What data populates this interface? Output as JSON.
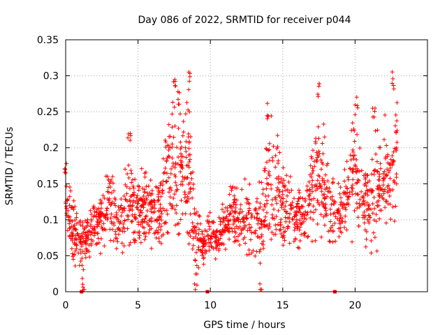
{
  "chart_data": {
    "type": "scatter",
    "title": "Day 086 of 2022, SRMTID for receiver p044",
    "xlabel": "GPS time / hours",
    "ylabel": "SRMTID / TECUs",
    "xlim": [
      0,
      25
    ],
    "ylim": [
      0,
      0.35
    ],
    "xticks": [
      "0",
      "5",
      "10",
      "15",
      "20"
    ],
    "yticks": [
      "0",
      "0.05",
      "0.1",
      "0.15",
      "0.2",
      "0.25",
      "0.3",
      "0.35"
    ],
    "grid": true,
    "marker": "+",
    "color": "#ff0000",
    "seed": 86,
    "envelope": [
      {
        "x": 0.0,
        "lo": 0.06,
        "hi": 0.19
      },
      {
        "x": 0.5,
        "lo": 0.03,
        "hi": 0.15
      },
      {
        "x": 1.0,
        "lo": 0.02,
        "hi": 0.11
      },
      {
        "x": 1.5,
        "lo": 0.03,
        "hi": 0.12
      },
      {
        "x": 2.0,
        "lo": 0.04,
        "hi": 0.15
      },
      {
        "x": 2.5,
        "lo": 0.04,
        "hi": 0.15
      },
      {
        "x": 3.0,
        "lo": 0.05,
        "hi": 0.19
      },
      {
        "x": 3.5,
        "lo": 0.04,
        "hi": 0.16
      },
      {
        "x": 4.0,
        "lo": 0.04,
        "hi": 0.18
      },
      {
        "x": 4.5,
        "lo": 0.05,
        "hi": 0.23
      },
      {
        "x": 5.0,
        "lo": 0.05,
        "hi": 0.16
      },
      {
        "x": 5.5,
        "lo": 0.05,
        "hi": 0.2
      },
      {
        "x": 6.0,
        "lo": 0.05,
        "hi": 0.17
      },
      {
        "x": 6.5,
        "lo": 0.04,
        "hi": 0.18
      },
      {
        "x": 7.0,
        "lo": 0.05,
        "hi": 0.26
      },
      {
        "x": 7.5,
        "lo": 0.06,
        "hi": 0.3
      },
      {
        "x": 8.0,
        "lo": 0.05,
        "hi": 0.27
      },
      {
        "x": 8.5,
        "lo": 0.04,
        "hi": 0.31
      },
      {
        "x": 9.0,
        "lo": 0.02,
        "hi": 0.13
      },
      {
        "x": 9.5,
        "lo": 0.03,
        "hi": 0.1
      },
      {
        "x": 10.0,
        "lo": 0.04,
        "hi": 0.12
      },
      {
        "x": 10.5,
        "lo": 0.04,
        "hi": 0.1
      },
      {
        "x": 11.0,
        "lo": 0.04,
        "hi": 0.14
      },
      {
        "x": 11.5,
        "lo": 0.05,
        "hi": 0.17
      },
      {
        "x": 12.0,
        "lo": 0.04,
        "hi": 0.15
      },
      {
        "x": 12.5,
        "lo": 0.04,
        "hi": 0.16
      },
      {
        "x": 13.0,
        "lo": 0.03,
        "hi": 0.15
      },
      {
        "x": 13.5,
        "lo": 0.01,
        "hi": 0.18
      },
      {
        "x": 14.0,
        "lo": 0.04,
        "hi": 0.27
      },
      {
        "x": 14.5,
        "lo": 0.04,
        "hi": 0.25
      },
      {
        "x": 15.0,
        "lo": 0.05,
        "hi": 0.18
      },
      {
        "x": 15.5,
        "lo": 0.05,
        "hi": 0.18
      },
      {
        "x": 16.0,
        "lo": 0.04,
        "hi": 0.18
      },
      {
        "x": 16.5,
        "lo": 0.04,
        "hi": 0.17
      },
      {
        "x": 17.0,
        "lo": 0.05,
        "hi": 0.21
      },
      {
        "x": 17.5,
        "lo": 0.05,
        "hi": 0.3
      },
      {
        "x": 18.0,
        "lo": 0.05,
        "hi": 0.21
      },
      {
        "x": 18.5,
        "lo": 0.05,
        "hi": 0.18
      },
      {
        "x": 19.0,
        "lo": 0.05,
        "hi": 0.16
      },
      {
        "x": 19.5,
        "lo": 0.05,
        "hi": 0.22
      },
      {
        "x": 20.0,
        "lo": 0.07,
        "hi": 0.28
      },
      {
        "x": 20.5,
        "lo": 0.05,
        "hi": 0.22
      },
      {
        "x": 21.0,
        "lo": 0.03,
        "hi": 0.21
      },
      {
        "x": 21.5,
        "lo": 0.04,
        "hi": 0.27
      },
      {
        "x": 22.0,
        "lo": 0.06,
        "hi": 0.25
      },
      {
        "x": 22.5,
        "lo": 0.07,
        "hi": 0.26
      },
      {
        "x": 22.9,
        "lo": 0.07,
        "hi": 0.32
      }
    ],
    "spikes": [
      {
        "x": 0.0,
        "y": 0.19
      },
      {
        "x": 4.4,
        "y": 0.23
      },
      {
        "x": 7.5,
        "y": 0.3
      },
      {
        "x": 7.8,
        "y": 0.28
      },
      {
        "x": 8.5,
        "y": 0.31
      },
      {
        "x": 14.0,
        "y": 0.27
      },
      {
        "x": 17.5,
        "y": 0.29
      },
      {
        "x": 20.1,
        "y": 0.275
      },
      {
        "x": 21.3,
        "y": 0.27
      },
      {
        "x": 22.6,
        "y": 0.31
      },
      {
        "x": 13.5,
        "y": 0.015
      },
      {
        "x": 1.2,
        "y": 0.02
      },
      {
        "x": 9.0,
        "y": 0.03
      }
    ],
    "zero_points": [
      1.1,
      9.8,
      18.6
    ]
  }
}
